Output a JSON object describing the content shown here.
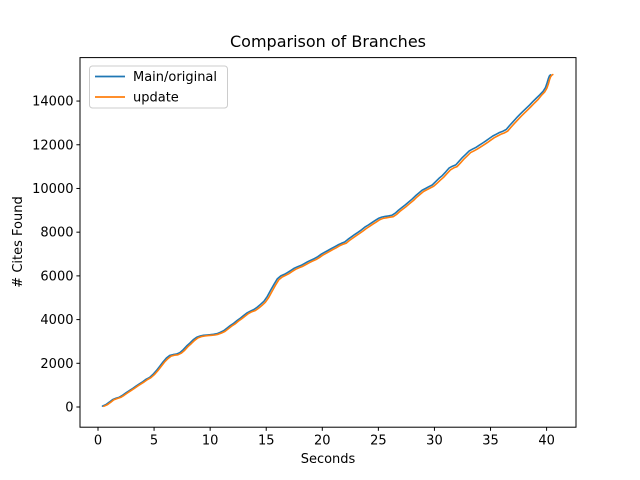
{
  "figure_title": "Comparison of Branches",
  "chart_data": {
    "type": "line",
    "title": "Comparison of Branches",
    "xlabel": "Seconds",
    "ylabel": "# Cites Found",
    "xlim": [
      -1.6,
      42.6
    ],
    "ylim": [
      -920,
      15990
    ],
    "xticks": [
      0,
      5,
      10,
      15,
      20,
      25,
      30,
      35,
      40
    ],
    "yticks": [
      0,
      2000,
      4000,
      6000,
      8000,
      10000,
      12000,
      14000
    ],
    "grid": false,
    "legend_position": "upper left",
    "background_color": "#ffffff",
    "spine_color": "#000000",
    "series": [
      {
        "name": "Main/original",
        "color": "#1f77b4",
        "points": [
          [
            0.4,
            40
          ],
          [
            0.7,
            110
          ],
          [
            1.0,
            220
          ],
          [
            1.3,
            340
          ],
          [
            1.6,
            400
          ],
          [
            1.9,
            450
          ],
          [
            2.2,
            540
          ],
          [
            2.5,
            650
          ],
          [
            2.8,
            750
          ],
          [
            3.1,
            850
          ],
          [
            3.4,
            960
          ],
          [
            3.7,
            1060
          ],
          [
            4.0,
            1160
          ],
          [
            4.3,
            1270
          ],
          [
            4.6,
            1350
          ],
          [
            4.9,
            1490
          ],
          [
            5.2,
            1660
          ],
          [
            5.5,
            1860
          ],
          [
            5.8,
            2060
          ],
          [
            6.1,
            2240
          ],
          [
            6.4,
            2360
          ],
          [
            6.7,
            2400
          ],
          [
            7.0,
            2420
          ],
          [
            7.3,
            2490
          ],
          [
            7.6,
            2620
          ],
          [
            7.9,
            2790
          ],
          [
            8.2,
            2930
          ],
          [
            8.5,
            3080
          ],
          [
            8.8,
            3190
          ],
          [
            9.1,
            3250
          ],
          [
            9.4,
            3280
          ],
          [
            9.7,
            3295
          ],
          [
            10.0,
            3310
          ],
          [
            10.3,
            3325
          ],
          [
            10.6,
            3355
          ],
          [
            10.9,
            3415
          ],
          [
            11.2,
            3490
          ],
          [
            11.5,
            3610
          ],
          [
            11.8,
            3730
          ],
          [
            12.1,
            3830
          ],
          [
            12.4,
            3960
          ],
          [
            12.7,
            4070
          ],
          [
            13.0,
            4190
          ],
          [
            13.3,
            4310
          ],
          [
            13.6,
            4390
          ],
          [
            13.9,
            4460
          ],
          [
            14.2,
            4570
          ],
          [
            14.5,
            4700
          ],
          [
            14.8,
            4840
          ],
          [
            15.1,
            5060
          ],
          [
            15.4,
            5350
          ],
          [
            15.7,
            5620
          ],
          [
            16.0,
            5870
          ],
          [
            16.3,
            6000
          ],
          [
            16.6,
            6070
          ],
          [
            16.9,
            6150
          ],
          [
            17.2,
            6250
          ],
          [
            17.5,
            6350
          ],
          [
            17.8,
            6420
          ],
          [
            18.1,
            6480
          ],
          [
            18.4,
            6560
          ],
          [
            18.7,
            6650
          ],
          [
            19.0,
            6720
          ],
          [
            19.3,
            6790
          ],
          [
            19.6,
            6880
          ],
          [
            19.9,
            6990
          ],
          [
            20.2,
            7080
          ],
          [
            20.5,
            7160
          ],
          [
            20.8,
            7250
          ],
          [
            21.1,
            7330
          ],
          [
            21.4,
            7420
          ],
          [
            21.7,
            7490
          ],
          [
            22.0,
            7550
          ],
          [
            22.3,
            7680
          ],
          [
            22.6,
            7790
          ],
          [
            22.9,
            7900
          ],
          [
            23.2,
            8000
          ],
          [
            23.5,
            8110
          ],
          [
            23.8,
            8230
          ],
          [
            24.1,
            8330
          ],
          [
            24.4,
            8430
          ],
          [
            24.7,
            8530
          ],
          [
            25.0,
            8630
          ],
          [
            25.3,
            8690
          ],
          [
            25.6,
            8720
          ],
          [
            25.9,
            8745
          ],
          [
            26.2,
            8770
          ],
          [
            26.5,
            8870
          ],
          [
            26.8,
            9010
          ],
          [
            27.1,
            9130
          ],
          [
            27.4,
            9250
          ],
          [
            27.7,
            9380
          ],
          [
            28.0,
            9510
          ],
          [
            28.3,
            9660
          ],
          [
            28.6,
            9790
          ],
          [
            28.9,
            9920
          ],
          [
            29.2,
            10000
          ],
          [
            29.5,
            10080
          ],
          [
            29.8,
            10160
          ],
          [
            30.1,
            10310
          ],
          [
            30.4,
            10460
          ],
          [
            30.7,
            10590
          ],
          [
            31.0,
            10760
          ],
          [
            31.3,
            10930
          ],
          [
            31.6,
            11020
          ],
          [
            31.9,
            11080
          ],
          [
            32.2,
            11250
          ],
          [
            32.5,
            11420
          ],
          [
            32.8,
            11570
          ],
          [
            33.1,
            11720
          ],
          [
            33.4,
            11800
          ],
          [
            33.7,
            11880
          ],
          [
            34.0,
            11980
          ],
          [
            34.3,
            12080
          ],
          [
            34.6,
            12180
          ],
          [
            34.9,
            12290
          ],
          [
            35.2,
            12400
          ],
          [
            35.5,
            12480
          ],
          [
            35.8,
            12560
          ],
          [
            36.1,
            12620
          ],
          [
            36.4,
            12700
          ],
          [
            36.7,
            12880
          ],
          [
            37.0,
            13050
          ],
          [
            37.3,
            13220
          ],
          [
            37.6,
            13380
          ],
          [
            37.9,
            13530
          ],
          [
            38.2,
            13680
          ],
          [
            38.5,
            13830
          ],
          [
            38.8,
            13990
          ],
          [
            39.1,
            14140
          ],
          [
            39.4,
            14290
          ],
          [
            39.7,
            14450
          ],
          [
            39.9,
            14620
          ],
          [
            40.05,
            14850
          ],
          [
            40.15,
            15020
          ],
          [
            40.25,
            15150
          ],
          [
            40.35,
            15200
          ]
        ]
      },
      {
        "name": "update",
        "color": "#ff7f0e",
        "points": [
          [
            0.52,
            30
          ],
          [
            0.82,
            100
          ],
          [
            1.12,
            210
          ],
          [
            1.42,
            330
          ],
          [
            1.72,
            390
          ],
          [
            2.02,
            440
          ],
          [
            2.32,
            530
          ],
          [
            2.62,
            640
          ],
          [
            2.92,
            740
          ],
          [
            3.22,
            840
          ],
          [
            3.52,
            950
          ],
          [
            3.82,
            1050
          ],
          [
            4.12,
            1150
          ],
          [
            4.42,
            1260
          ],
          [
            4.72,
            1340
          ],
          [
            5.02,
            1480
          ],
          [
            5.32,
            1650
          ],
          [
            5.62,
            1850
          ],
          [
            5.92,
            2050
          ],
          [
            6.22,
            2210
          ],
          [
            6.52,
            2330
          ],
          [
            6.82,
            2370
          ],
          [
            7.12,
            2390
          ],
          [
            7.42,
            2460
          ],
          [
            7.72,
            2590
          ],
          [
            8.02,
            2760
          ],
          [
            8.32,
            2900
          ],
          [
            8.62,
            3050
          ],
          [
            8.92,
            3160
          ],
          [
            9.22,
            3220
          ],
          [
            9.52,
            3250
          ],
          [
            9.82,
            3265
          ],
          [
            10.12,
            3280
          ],
          [
            10.42,
            3295
          ],
          [
            10.72,
            3325
          ],
          [
            11.02,
            3385
          ],
          [
            11.32,
            3460
          ],
          [
            11.62,
            3580
          ],
          [
            11.92,
            3700
          ],
          [
            12.22,
            3800
          ],
          [
            12.52,
            3930
          ],
          [
            12.82,
            4040
          ],
          [
            13.12,
            4160
          ],
          [
            13.42,
            4280
          ],
          [
            13.72,
            4360
          ],
          [
            14.02,
            4410
          ],
          [
            14.32,
            4520
          ],
          [
            14.62,
            4650
          ],
          [
            14.92,
            4790
          ],
          [
            15.22,
            5010
          ],
          [
            15.52,
            5300
          ],
          [
            15.82,
            5570
          ],
          [
            16.12,
            5820
          ],
          [
            16.42,
            5950
          ],
          [
            16.72,
            6020
          ],
          [
            17.02,
            6100
          ],
          [
            17.32,
            6200
          ],
          [
            17.62,
            6300
          ],
          [
            17.92,
            6370
          ],
          [
            18.22,
            6430
          ],
          [
            18.52,
            6510
          ],
          [
            18.82,
            6600
          ],
          [
            19.12,
            6670
          ],
          [
            19.42,
            6740
          ],
          [
            19.72,
            6830
          ],
          [
            20.02,
            6940
          ],
          [
            20.32,
            7030
          ],
          [
            20.62,
            7110
          ],
          [
            20.92,
            7200
          ],
          [
            21.22,
            7280
          ],
          [
            21.52,
            7370
          ],
          [
            21.82,
            7440
          ],
          [
            22.12,
            7490
          ],
          [
            22.42,
            7620
          ],
          [
            22.72,
            7730
          ],
          [
            23.02,
            7840
          ],
          [
            23.32,
            7940
          ],
          [
            23.62,
            8050
          ],
          [
            23.92,
            8170
          ],
          [
            24.22,
            8270
          ],
          [
            24.52,
            8370
          ],
          [
            24.82,
            8470
          ],
          [
            25.12,
            8570
          ],
          [
            25.42,
            8630
          ],
          [
            25.72,
            8660
          ],
          [
            26.02,
            8685
          ],
          [
            26.32,
            8710
          ],
          [
            26.62,
            8810
          ],
          [
            26.92,
            8950
          ],
          [
            27.22,
            9070
          ],
          [
            27.52,
            9190
          ],
          [
            27.82,
            9320
          ],
          [
            28.12,
            9450
          ],
          [
            28.42,
            9600
          ],
          [
            28.72,
            9730
          ],
          [
            29.02,
            9860
          ],
          [
            29.32,
            9940
          ],
          [
            29.62,
            10020
          ],
          [
            29.92,
            10100
          ],
          [
            30.22,
            10230
          ],
          [
            30.52,
            10380
          ],
          [
            30.82,
            10510
          ],
          [
            31.12,
            10680
          ],
          [
            31.42,
            10850
          ],
          [
            31.72,
            10940
          ],
          [
            32.02,
            11000
          ],
          [
            32.32,
            11170
          ],
          [
            32.62,
            11340
          ],
          [
            32.92,
            11490
          ],
          [
            33.22,
            11640
          ],
          [
            33.52,
            11720
          ],
          [
            33.82,
            11800
          ],
          [
            34.12,
            11900
          ],
          [
            34.42,
            12000
          ],
          [
            34.72,
            12100
          ],
          [
            35.02,
            12210
          ],
          [
            35.32,
            12320
          ],
          [
            35.62,
            12400
          ],
          [
            35.92,
            12480
          ],
          [
            36.22,
            12540
          ],
          [
            36.52,
            12620
          ],
          [
            36.82,
            12800
          ],
          [
            37.12,
            12970
          ],
          [
            37.42,
            13140
          ],
          [
            37.72,
            13300
          ],
          [
            38.02,
            13450
          ],
          [
            38.32,
            13600
          ],
          [
            38.62,
            13750
          ],
          [
            38.92,
            13910
          ],
          [
            39.22,
            14060
          ],
          [
            39.52,
            14250
          ],
          [
            39.82,
            14410
          ],
          [
            40.02,
            14580
          ],
          [
            40.17,
            14800
          ],
          [
            40.27,
            14990
          ],
          [
            40.37,
            15120
          ],
          [
            40.47,
            15190
          ],
          [
            40.55,
            15210
          ]
        ]
      }
    ]
  }
}
